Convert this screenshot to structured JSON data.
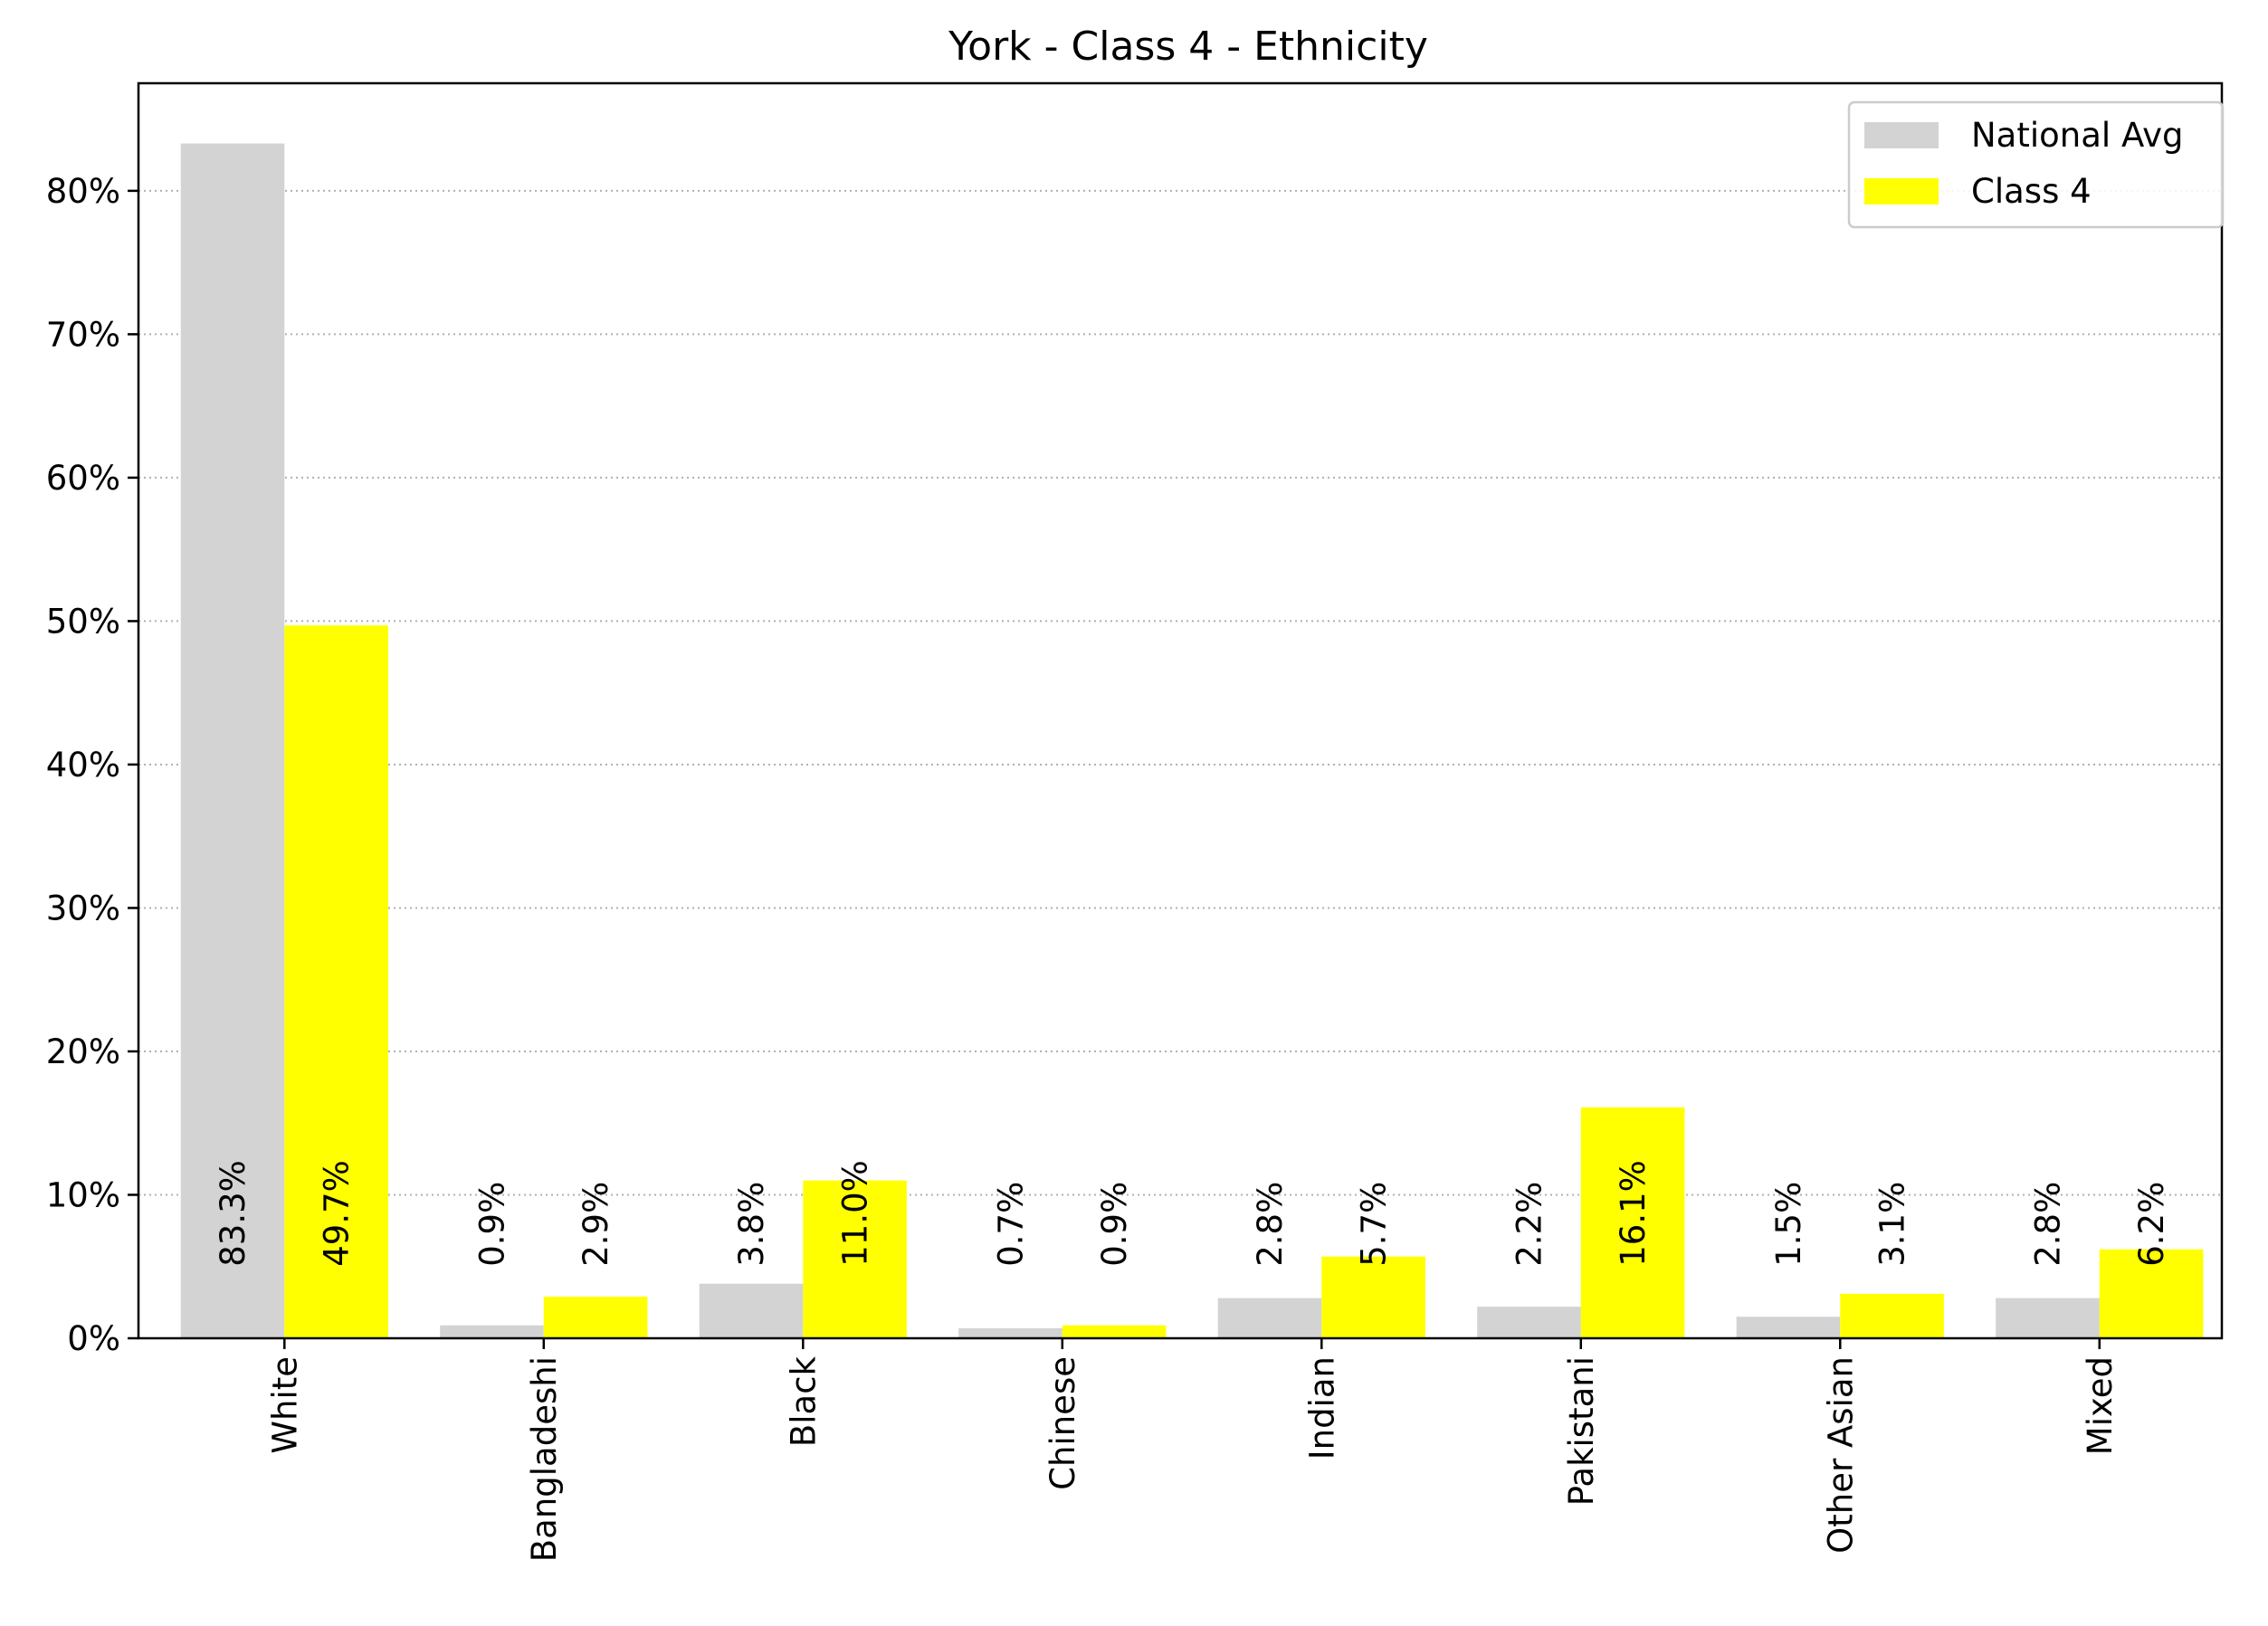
{
  "chart_data": {
    "type": "bar",
    "title": "York - Class 4 - Ethnicity",
    "xlabel": "",
    "ylabel": "",
    "categories": [
      "White",
      "Bangladeshi",
      "Black",
      "Chinese",
      "Indian",
      "Pakistani",
      "Other Asian",
      "Mixed"
    ],
    "series": [
      {
        "name": "National Avg",
        "color": "#d3d3d3",
        "values": [
          83.3,
          0.9,
          3.8,
          0.7,
          2.8,
          2.2,
          1.5,
          2.8
        ],
        "labels": [
          "83.3%",
          "0.9%",
          "3.8%",
          "0.7%",
          "2.8%",
          "2.2%",
          "1.5%",
          "2.8%"
        ]
      },
      {
        "name": "Class 4",
        "color": "#ffff00",
        "values": [
          49.7,
          2.9,
          11.0,
          0.9,
          5.7,
          16.1,
          3.1,
          6.2
        ],
        "labels": [
          "49.7%",
          "2.9%",
          "11.0%",
          "0.9%",
          "5.7%",
          "16.1%",
          "3.1%",
          "6.2%"
        ]
      }
    ],
    "ylim": [
      0,
      87.5
    ],
    "yticks": [
      0,
      10,
      20,
      30,
      40,
      50,
      60,
      70,
      80
    ],
    "ytick_labels": [
      "0%",
      "10%",
      "20%",
      "30%",
      "40%",
      "50%",
      "60%",
      "70%",
      "80%"
    ],
    "grid": "y-dotted",
    "legend_position": "top-right"
  }
}
